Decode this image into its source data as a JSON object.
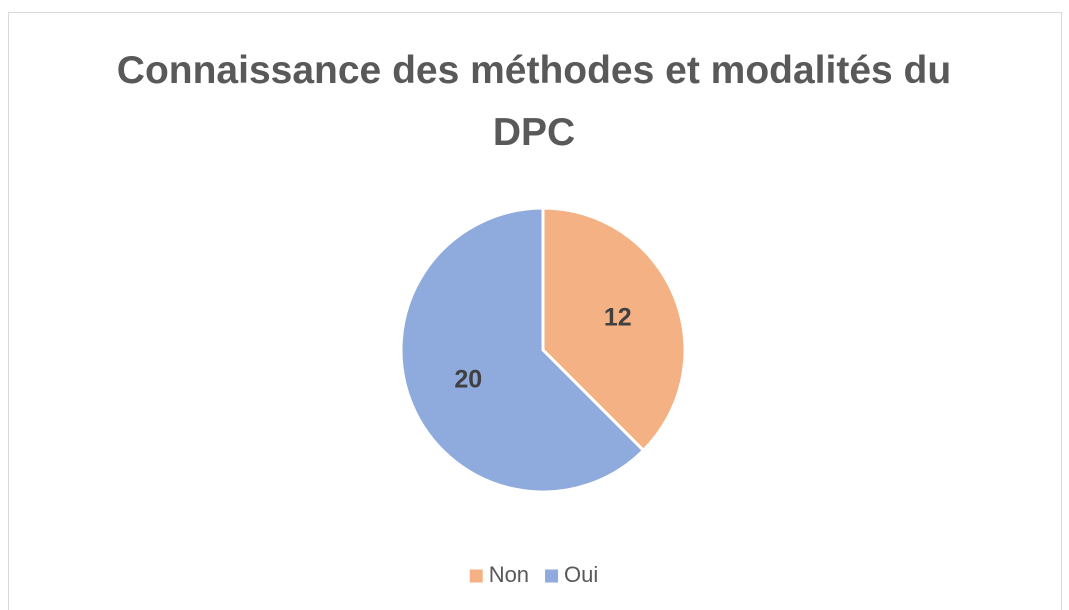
{
  "chart_data": {
    "type": "pie",
    "title": "Connaissance des méthodes et modalités du DPC",
    "categories": [
      "Non",
      "Oui"
    ],
    "values": [
      12,
      20
    ],
    "colors": [
      "#f4b183",
      "#8faadc"
    ],
    "legend": "bottom"
  }
}
